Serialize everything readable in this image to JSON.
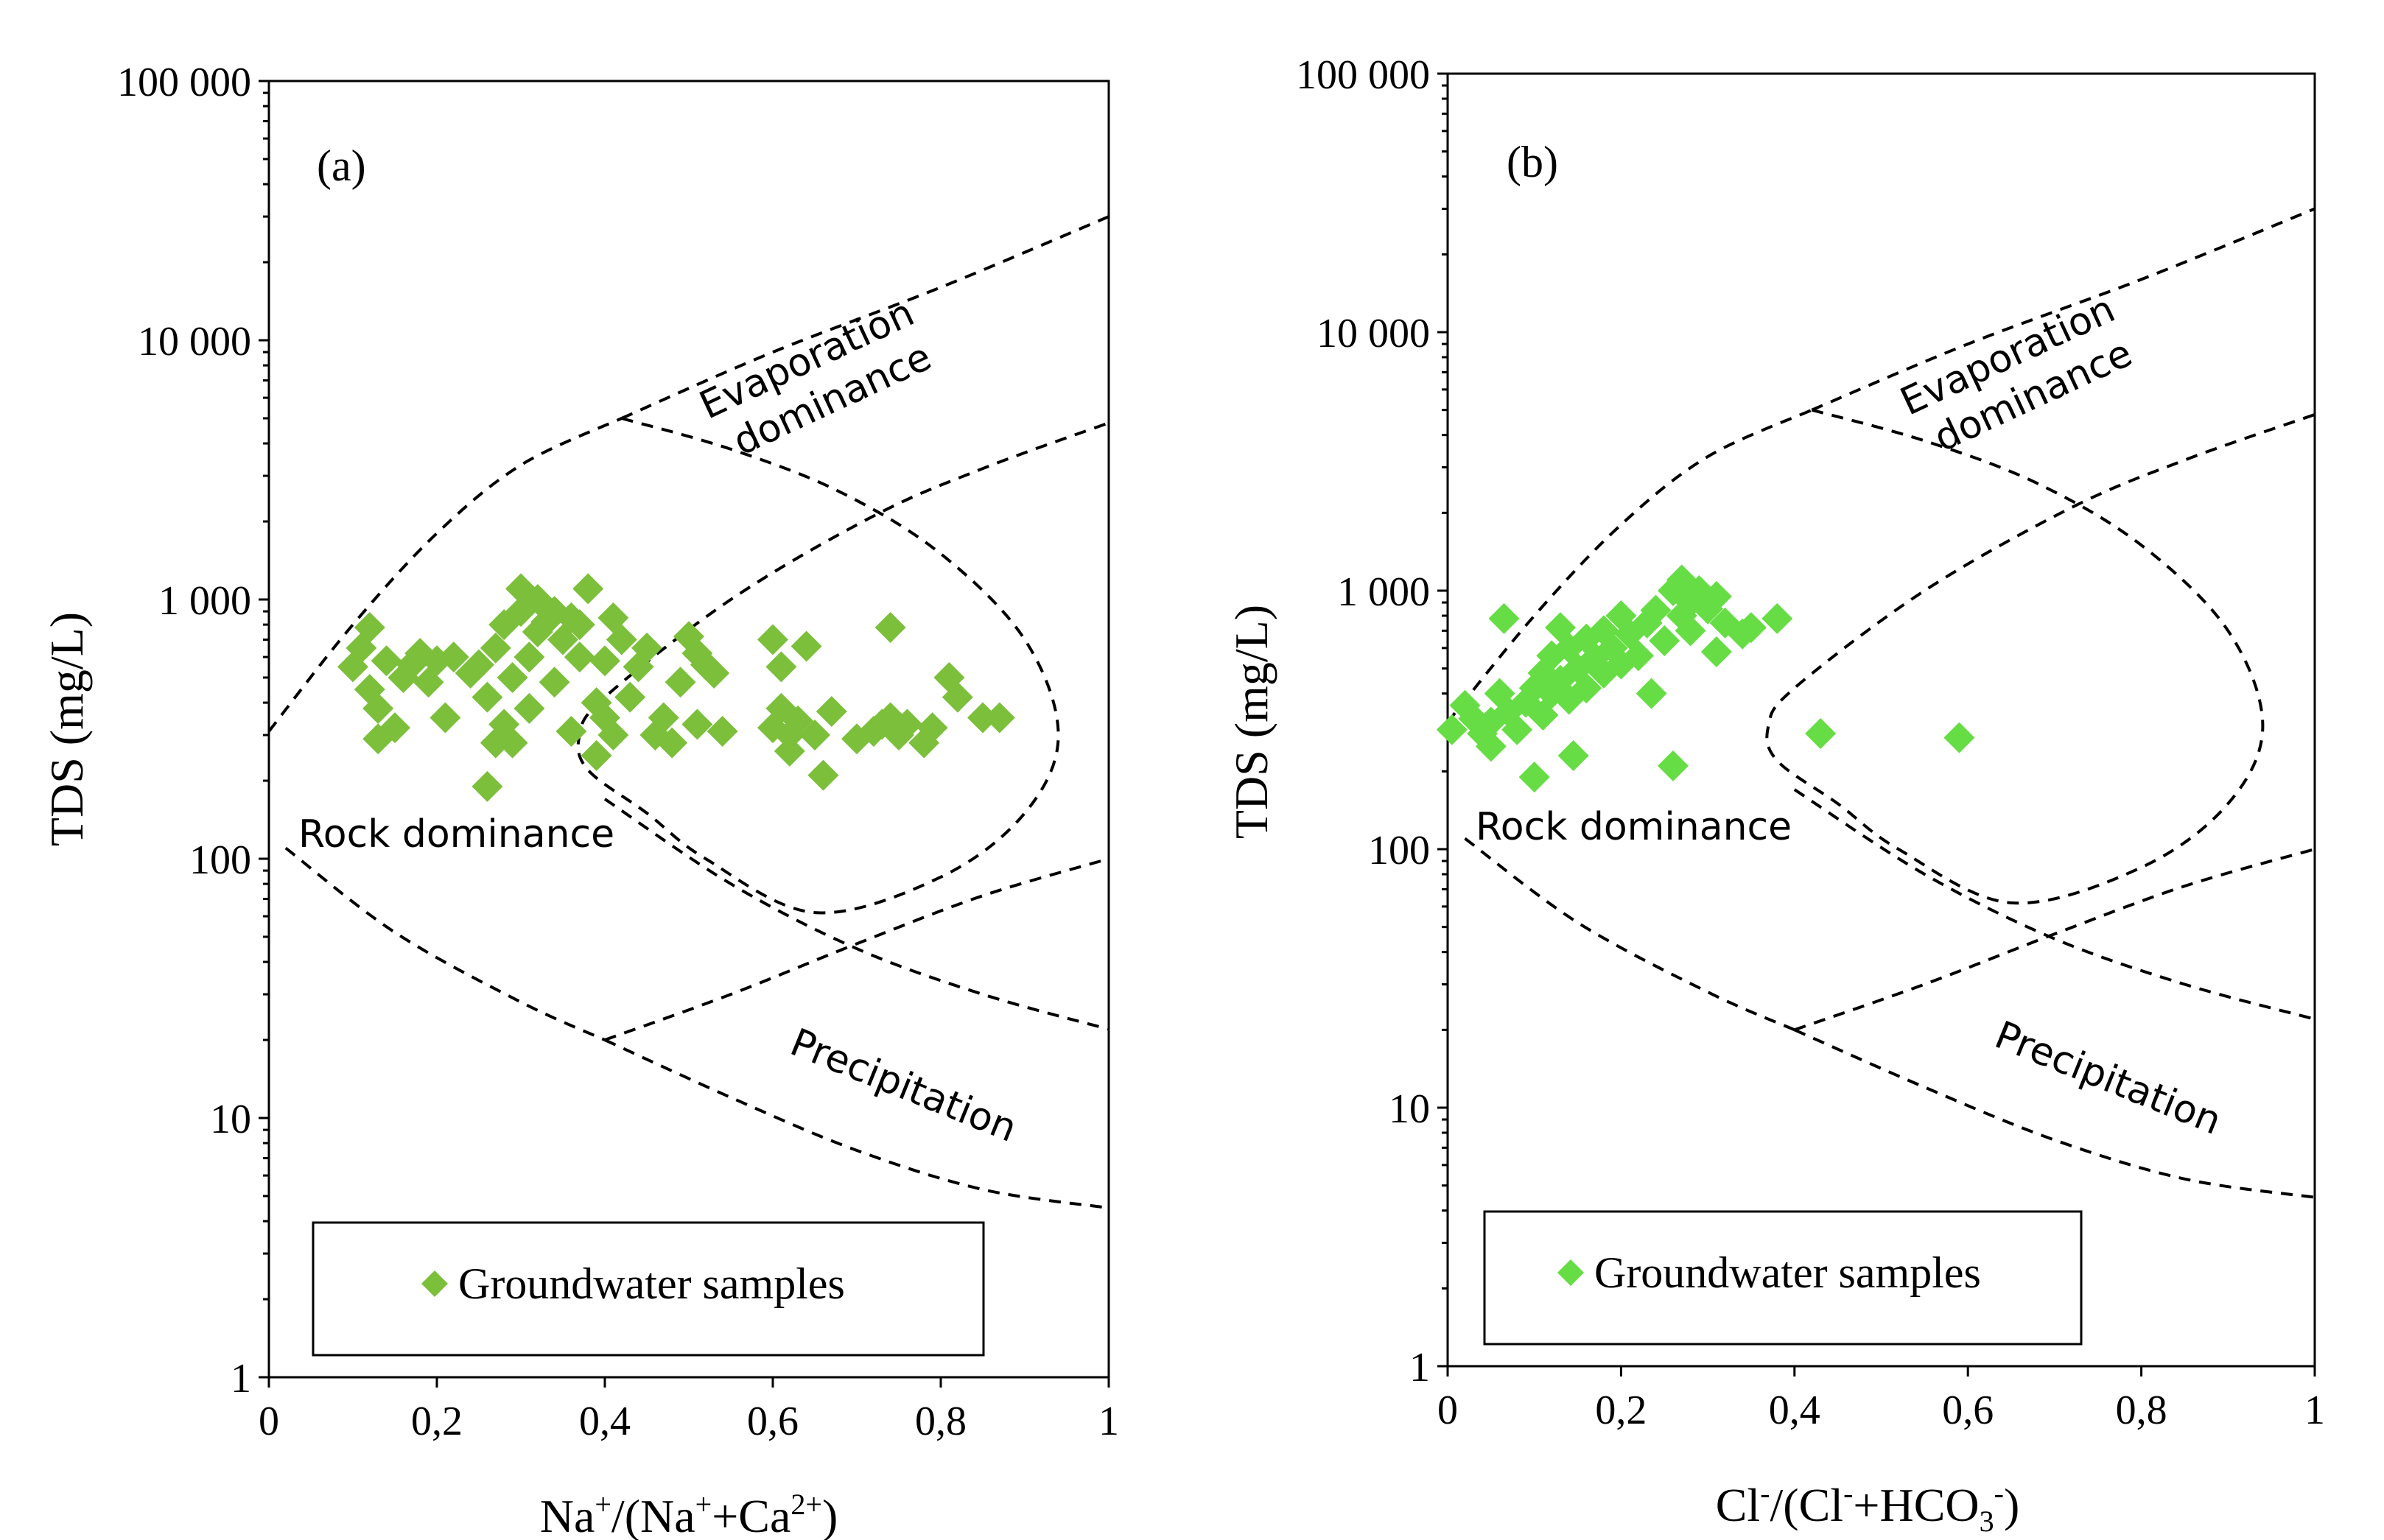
{
  "chart_data": [
    {
      "type": "scatter",
      "panel_label": "(a)",
      "xlabel": "Na⁺/(Na⁺+Ca²⁺)",
      "ylabel": "TDS (mg/L)",
      "xlim": [
        0,
        1
      ],
      "ylim": [
        1,
        100000
      ],
      "y_scale": "log",
      "x_ticks": [
        "0",
        "0,2",
        "0,4",
        "0,6",
        "0,8",
        "1"
      ],
      "y_ticks": [
        "1",
        "10",
        "100",
        "1 000",
        "10 000",
        "100 000"
      ],
      "legend_label": "Groundwater samples",
      "legend_position": "bottom",
      "region_labels": [
        "Evaporation dominance",
        "Rock dominance",
        "Precipitation"
      ],
      "marker_color": "#7cbf3b",
      "boundaries": [
        {
          "x": [
            0,
            0.1,
            0.2,
            0.3,
            0.42
          ],
          "y": [
            310,
            800,
            1800,
            3300,
            5000
          ]
        },
        {
          "x": [
            0.42,
            0.6,
            0.8,
            1.0
          ],
          "y": [
            5000,
            9000,
            16000,
            30000
          ]
        },
        {
          "x": [
            0.42,
            0.55,
            0.68,
            0.8,
            0.9,
            0.94,
            0.9,
            0.8,
            0.65,
            0.52,
            0.45,
            0.38,
            0.37,
            0.4,
            0.55,
            0.72,
            0.85,
            1.0
          ],
          "y": [
            5000,
            3800,
            2600,
            1500,
            700,
            300,
            150,
            85,
            62,
            100,
            150,
            220,
            300,
            420,
            1000,
            2100,
            3200,
            4800
          ]
        },
        {
          "x": [
            0.4,
            0.55,
            0.7,
            0.85,
            1.0
          ],
          "y": [
            20,
            30,
            47,
            72,
            100
          ]
        },
        {
          "x": [
            0.02,
            0.15,
            0.3,
            0.4
          ],
          "y": [
            110,
            52,
            28,
            20
          ]
        },
        {
          "x": [
            0.4,
            0.55,
            0.7,
            0.85,
            1.0
          ],
          "y": [
            20,
            12,
            7.5,
            5.3,
            4.5
          ]
        },
        {
          "x": [
            0.4,
            0.55,
            0.7,
            0.85,
            1.0
          ],
          "y": [
            170,
            80,
            45,
            30,
            22
          ]
        }
      ],
      "points": [
        {
          "x": 0.1,
          "y": 550
        },
        {
          "x": 0.11,
          "y": 650
        },
        {
          "x": 0.12,
          "y": 780
        },
        {
          "x": 0.12,
          "y": 450
        },
        {
          "x": 0.13,
          "y": 380
        },
        {
          "x": 0.13,
          "y": 290
        },
        {
          "x": 0.14,
          "y": 580
        },
        {
          "x": 0.15,
          "y": 320
        },
        {
          "x": 0.16,
          "y": 500
        },
        {
          "x": 0.17,
          "y": 560
        },
        {
          "x": 0.18,
          "y": 620
        },
        {
          "x": 0.19,
          "y": 480
        },
        {
          "x": 0.2,
          "y": 580
        },
        {
          "x": 0.21,
          "y": 350
        },
        {
          "x": 0.22,
          "y": 600
        },
        {
          "x": 0.24,
          "y": 520
        },
        {
          "x": 0.25,
          "y": 560
        },
        {
          "x": 0.26,
          "y": 420
        },
        {
          "x": 0.26,
          "y": 190
        },
        {
          "x": 0.27,
          "y": 280
        },
        {
          "x": 0.27,
          "y": 650
        },
        {
          "x": 0.28,
          "y": 800
        },
        {
          "x": 0.28,
          "y": 330
        },
        {
          "x": 0.29,
          "y": 500
        },
        {
          "x": 0.29,
          "y": 280
        },
        {
          "x": 0.3,
          "y": 900
        },
        {
          "x": 0.3,
          "y": 1100
        },
        {
          "x": 0.31,
          "y": 600
        },
        {
          "x": 0.31,
          "y": 380
        },
        {
          "x": 0.32,
          "y": 1000
        },
        {
          "x": 0.32,
          "y": 750
        },
        {
          "x": 0.33,
          "y": 820
        },
        {
          "x": 0.34,
          "y": 480
        },
        {
          "x": 0.34,
          "y": 900
        },
        {
          "x": 0.35,
          "y": 700
        },
        {
          "x": 0.36,
          "y": 850
        },
        {
          "x": 0.36,
          "y": 310
        },
        {
          "x": 0.37,
          "y": 800
        },
        {
          "x": 0.37,
          "y": 600
        },
        {
          "x": 0.38,
          "y": 1100
        },
        {
          "x": 0.39,
          "y": 400
        },
        {
          "x": 0.39,
          "y": 250
        },
        {
          "x": 0.4,
          "y": 580
        },
        {
          "x": 0.4,
          "y": 350
        },
        {
          "x": 0.41,
          "y": 850
        },
        {
          "x": 0.41,
          "y": 300
        },
        {
          "x": 0.42,
          "y": 700
        },
        {
          "x": 0.43,
          "y": 420
        },
        {
          "x": 0.44,
          "y": 550
        },
        {
          "x": 0.45,
          "y": 650
        },
        {
          "x": 0.46,
          "y": 300
        },
        {
          "x": 0.47,
          "y": 350
        },
        {
          "x": 0.48,
          "y": 280
        },
        {
          "x": 0.49,
          "y": 480
        },
        {
          "x": 0.5,
          "y": 720
        },
        {
          "x": 0.51,
          "y": 330
        },
        {
          "x": 0.51,
          "y": 620
        },
        {
          "x": 0.52,
          "y": 560
        },
        {
          "x": 0.53,
          "y": 520
        },
        {
          "x": 0.54,
          "y": 310
        },
        {
          "x": 0.6,
          "y": 320
        },
        {
          "x": 0.6,
          "y": 700
        },
        {
          "x": 0.61,
          "y": 380
        },
        {
          "x": 0.61,
          "y": 550
        },
        {
          "x": 0.62,
          "y": 300
        },
        {
          "x": 0.62,
          "y": 260
        },
        {
          "x": 0.63,
          "y": 340
        },
        {
          "x": 0.64,
          "y": 660
        },
        {
          "x": 0.65,
          "y": 300
        },
        {
          "x": 0.66,
          "y": 210
        },
        {
          "x": 0.67,
          "y": 370
        },
        {
          "x": 0.7,
          "y": 290
        },
        {
          "x": 0.72,
          "y": 310
        },
        {
          "x": 0.73,
          "y": 330
        },
        {
          "x": 0.74,
          "y": 350
        },
        {
          "x": 0.74,
          "y": 780
        },
        {
          "x": 0.75,
          "y": 300
        },
        {
          "x": 0.76,
          "y": 330
        },
        {
          "x": 0.78,
          "y": 280
        },
        {
          "x": 0.79,
          "y": 320
        },
        {
          "x": 0.81,
          "y": 500
        },
        {
          "x": 0.82,
          "y": 420
        },
        {
          "x": 0.85,
          "y": 350
        },
        {
          "x": 0.87,
          "y": 350
        }
      ]
    },
    {
      "type": "scatter",
      "panel_label": "(b)",
      "xlabel": "Cl⁻/(Cl⁻+HCO₃⁻)",
      "ylabel": "TDS (mg/L)",
      "xlim": [
        0,
        1
      ],
      "ylim": [
        1,
        100000
      ],
      "y_scale": "log",
      "x_ticks": [
        "0",
        "0,2",
        "0,4",
        "0,6",
        "0,8",
        "1"
      ],
      "y_ticks": [
        "1",
        "10",
        "100",
        "1 000",
        "10 000",
        "100 000"
      ],
      "legend_label": "Groundwater samples",
      "legend_position": "bottom",
      "region_labels": [
        "Evaporation dominance",
        "Rock dominance",
        "Precipitation"
      ],
      "marker_color": "#66dd44",
      "boundaries": [
        {
          "x": [
            0,
            0.1,
            0.2,
            0.3,
            0.42
          ],
          "y": [
            310,
            800,
            1800,
            3300,
            5000
          ]
        },
        {
          "x": [
            0.42,
            0.6,
            0.8,
            1.0
          ],
          "y": [
            5000,
            9000,
            16000,
            30000
          ]
        },
        {
          "x": [
            0.42,
            0.55,
            0.68,
            0.8,
            0.9,
            0.94,
            0.9,
            0.8,
            0.65,
            0.52,
            0.45,
            0.38,
            0.37,
            0.4,
            0.55,
            0.72,
            0.85,
            1.0
          ],
          "y": [
            5000,
            3800,
            2600,
            1500,
            700,
            300,
            150,
            85,
            62,
            100,
            150,
            220,
            300,
            420,
            1000,
            2100,
            3200,
            4800
          ]
        },
        {
          "x": [
            0.4,
            0.55,
            0.7,
            0.85,
            1.0
          ],
          "y": [
            20,
            30,
            47,
            72,
            100
          ]
        },
        {
          "x": [
            0.02,
            0.15,
            0.3,
            0.4
          ],
          "y": [
            110,
            52,
            28,
            20
          ]
        },
        {
          "x": [
            0.4,
            0.55,
            0.7,
            0.85,
            1.0
          ],
          "y": [
            20,
            12,
            7.5,
            5.3,
            4.5
          ]
        },
        {
          "x": [
            0.4,
            0.55,
            0.7,
            0.85,
            1.0
          ],
          "y": [
            170,
            80,
            45,
            30,
            22
          ]
        }
      ],
      "points": [
        {
          "x": 0.005,
          "y": 290
        },
        {
          "x": 0.02,
          "y": 360
        },
        {
          "x": 0.03,
          "y": 320
        },
        {
          "x": 0.04,
          "y": 280
        },
        {
          "x": 0.05,
          "y": 250
        },
        {
          "x": 0.05,
          "y": 310
        },
        {
          "x": 0.06,
          "y": 400
        },
        {
          "x": 0.065,
          "y": 780
        },
        {
          "x": 0.07,
          "y": 340
        },
        {
          "x": 0.08,
          "y": 290
        },
        {
          "x": 0.09,
          "y": 370
        },
        {
          "x": 0.1,
          "y": 190
        },
        {
          "x": 0.1,
          "y": 420
        },
        {
          "x": 0.11,
          "y": 330
        },
        {
          "x": 0.11,
          "y": 480
        },
        {
          "x": 0.12,
          "y": 400
        },
        {
          "x": 0.12,
          "y": 560
        },
        {
          "x": 0.13,
          "y": 450
        },
        {
          "x": 0.13,
          "y": 720
        },
        {
          "x": 0.14,
          "y": 380
        },
        {
          "x": 0.14,
          "y": 600
        },
        {
          "x": 0.145,
          "y": 230
        },
        {
          "x": 0.15,
          "y": 500
        },
        {
          "x": 0.16,
          "y": 420
        },
        {
          "x": 0.16,
          "y": 650
        },
        {
          "x": 0.17,
          "y": 550
        },
        {
          "x": 0.18,
          "y": 480
        },
        {
          "x": 0.18,
          "y": 700
        },
        {
          "x": 0.19,
          "y": 600
        },
        {
          "x": 0.2,
          "y": 520
        },
        {
          "x": 0.2,
          "y": 800
        },
        {
          "x": 0.21,
          "y": 680
        },
        {
          "x": 0.22,
          "y": 560
        },
        {
          "x": 0.23,
          "y": 750
        },
        {
          "x": 0.235,
          "y": 400
        },
        {
          "x": 0.24,
          "y": 840
        },
        {
          "x": 0.25,
          "y": 640
        },
        {
          "x": 0.26,
          "y": 1000
        },
        {
          "x": 0.26,
          "y": 210
        },
        {
          "x": 0.27,
          "y": 1100
        },
        {
          "x": 0.27,
          "y": 800
        },
        {
          "x": 0.28,
          "y": 700
        },
        {
          "x": 0.28,
          "y": 900
        },
        {
          "x": 0.29,
          "y": 1000
        },
        {
          "x": 0.3,
          "y": 850
        },
        {
          "x": 0.31,
          "y": 950
        },
        {
          "x": 0.31,
          "y": 580
        },
        {
          "x": 0.32,
          "y": 750
        },
        {
          "x": 0.34,
          "y": 680
        },
        {
          "x": 0.35,
          "y": 720
        },
        {
          "x": 0.38,
          "y": 780
        },
        {
          "x": 0.43,
          "y": 280
        },
        {
          "x": 0.59,
          "y": 270
        }
      ]
    }
  ]
}
